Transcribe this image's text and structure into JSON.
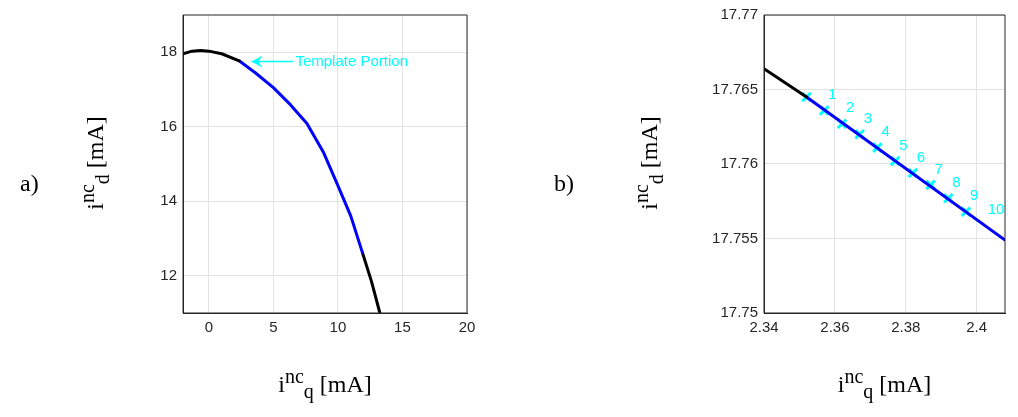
{
  "chart_data": [
    {
      "type": "line",
      "xlabel": "i$^{nc}$$_{q}$ [mA]",
      "ylabel": "i$^{nc}$$_{d}$ [mA]",
      "xlim": [
        -2,
        20
      ],
      "ylim": [
        11,
        19
      ],
      "xticks": [
        0,
        5,
        10,
        15,
        20
      ],
      "yticks": [
        12,
        14,
        16,
        18
      ],
      "grid": true,
      "marker": "none",
      "series": [
        {
          "color": "#000000",
          "x": [
            -2,
            -1.3,
            -0.65,
            0,
            1,
            2.35
          ],
          "values": [
            17.96,
            18.03,
            18.05,
            18.03,
            17.96,
            17.77
          ]
        },
        {
          "color": "#0000ff",
          "x": [
            2.35,
            3.6,
            5,
            6.3,
            7.6,
            8.9,
            10,
            11,
            11.9
          ],
          "values": [
            17.77,
            17.45,
            17.05,
            16.6,
            16.09,
            15.3,
            14.42,
            13.6,
            12.62
          ]
        },
        {
          "color": "#000000",
          "x": [
            11.9,
            12.6,
            13.25
          ],
          "values": [
            12.62,
            11.85,
            11.0
          ]
        }
      ],
      "annotations": [
        "a)",
        {
          "text": "Template Portion",
          "x": 3.3,
          "y": 17.75
        }
      ]
    },
    {
      "type": "line",
      "xlabel": "i$^{nc}$$_{q}$ [mA]",
      "ylabel": "i$^{nc}$$_{d}$ [mA]",
      "xlim": [
        2.34,
        2.408
      ],
      "ylim": [
        17.75,
        17.77
      ],
      "xticks": [
        2.34,
        2.36,
        2.38,
        2.4
      ],
      "yticks": [
        17.75,
        17.755,
        17.76,
        17.765,
        17.77
      ],
      "grid": true,
      "series": [
        {
          "color": "#000000",
          "x": [
            2.34,
            2.352
          ],
          "values": [
            17.7664,
            17.7645
          ]
        },
        {
          "color": "#0000ff",
          "x": [
            2.352,
            2.408
          ],
          "values": [
            17.7645,
            17.7549
          ]
        },
        {
          "type": "scatter",
          "marker": "cross",
          "color": "#00ffff",
          "x": [
            2.352,
            2.357,
            2.362,
            2.367,
            2.372,
            2.377,
            2.382,
            2.387,
            2.392,
            2.397
          ],
          "values": [
            17.7645,
            17.7636,
            17.7627,
            17.762,
            17.7611,
            17.7602,
            17.7594,
            17.7586,
            17.7577,
            17.7568
          ]
        }
      ],
      "annotations": [
        "b)",
        {
          "text": "1",
          "x": 2.357,
          "y": 17.7636
        },
        {
          "text": "2",
          "x": 2.362,
          "y": 17.7627
        },
        {
          "text": "3",
          "x": 2.367,
          "y": 17.762
        },
        {
          "text": "4",
          "x": 2.372,
          "y": 17.7611
        },
        {
          "text": "5",
          "x": 2.377,
          "y": 17.7602
        },
        {
          "text": "6",
          "x": 2.382,
          "y": 17.7594
        },
        {
          "text": "7",
          "x": 2.387,
          "y": 17.7586
        },
        {
          "text": "8",
          "x": 2.392,
          "y": 17.7577
        },
        {
          "text": "9",
          "x": 2.397,
          "y": 17.7568
        },
        {
          "text": "10",
          "x": 2.402,
          "y": 17.7559
        }
      ]
    }
  ]
}
